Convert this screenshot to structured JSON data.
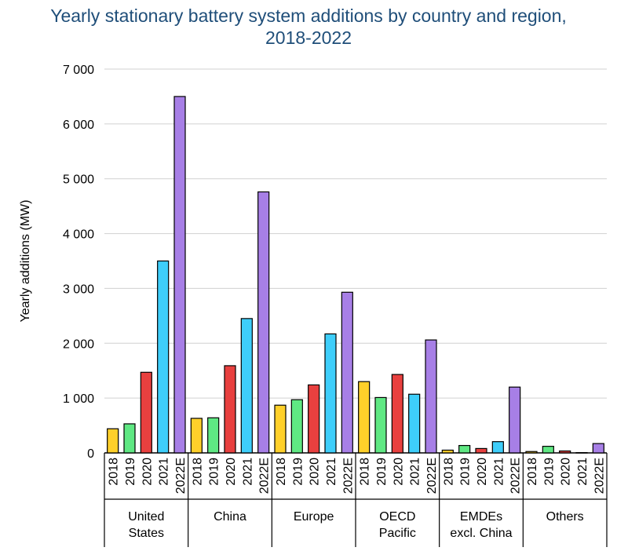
{
  "chart_data": {
    "type": "bar",
    "title": "Yearly stationary battery system additions by country and region, 2018-2022",
    "title_lines": [
      "Yearly stationary battery system additions by country and region,",
      "2018-2022"
    ],
    "ylabel": "Yearly additions (MW)",
    "xlabel": "",
    "ylim": [
      0,
      7000
    ],
    "yticks": [
      0,
      1000,
      2000,
      3000,
      4000,
      5000,
      6000,
      7000
    ],
    "ytick_labels": [
      "0",
      "1 000",
      "2 000",
      "3 000",
      "4 000",
      "5 000",
      "6 000",
      "7 000"
    ],
    "grid": true,
    "years": [
      "2018",
      "2019",
      "2020",
      "2021",
      "2022E"
    ],
    "colors": [
      "#FFD02A",
      "#5FE883",
      "#E8403F",
      "#3ECEFA",
      "#A77FE6"
    ],
    "groups": [
      {
        "label_lines": [
          "United",
          "States"
        ],
        "values": [
          440,
          530,
          1470,
          3500,
          6500
        ]
      },
      {
        "label_lines": [
          "China"
        ],
        "values": [
          630,
          640,
          1590,
          2450,
          4760
        ]
      },
      {
        "label_lines": [
          "Europe"
        ],
        "values": [
          870,
          970,
          1240,
          2170,
          2930
        ]
      },
      {
        "label_lines": [
          "OECD",
          "Pacific"
        ],
        "values": [
          1300,
          1010,
          1430,
          1070,
          2060
        ]
      },
      {
        "label_lines": [
          "EMDEs",
          "excl. China"
        ],
        "values": [
          50,
          135,
          80,
          205,
          1200
        ]
      },
      {
        "label_lines": [
          "Others"
        ],
        "values": [
          25,
          120,
          35,
          5,
          170
        ]
      }
    ]
  }
}
